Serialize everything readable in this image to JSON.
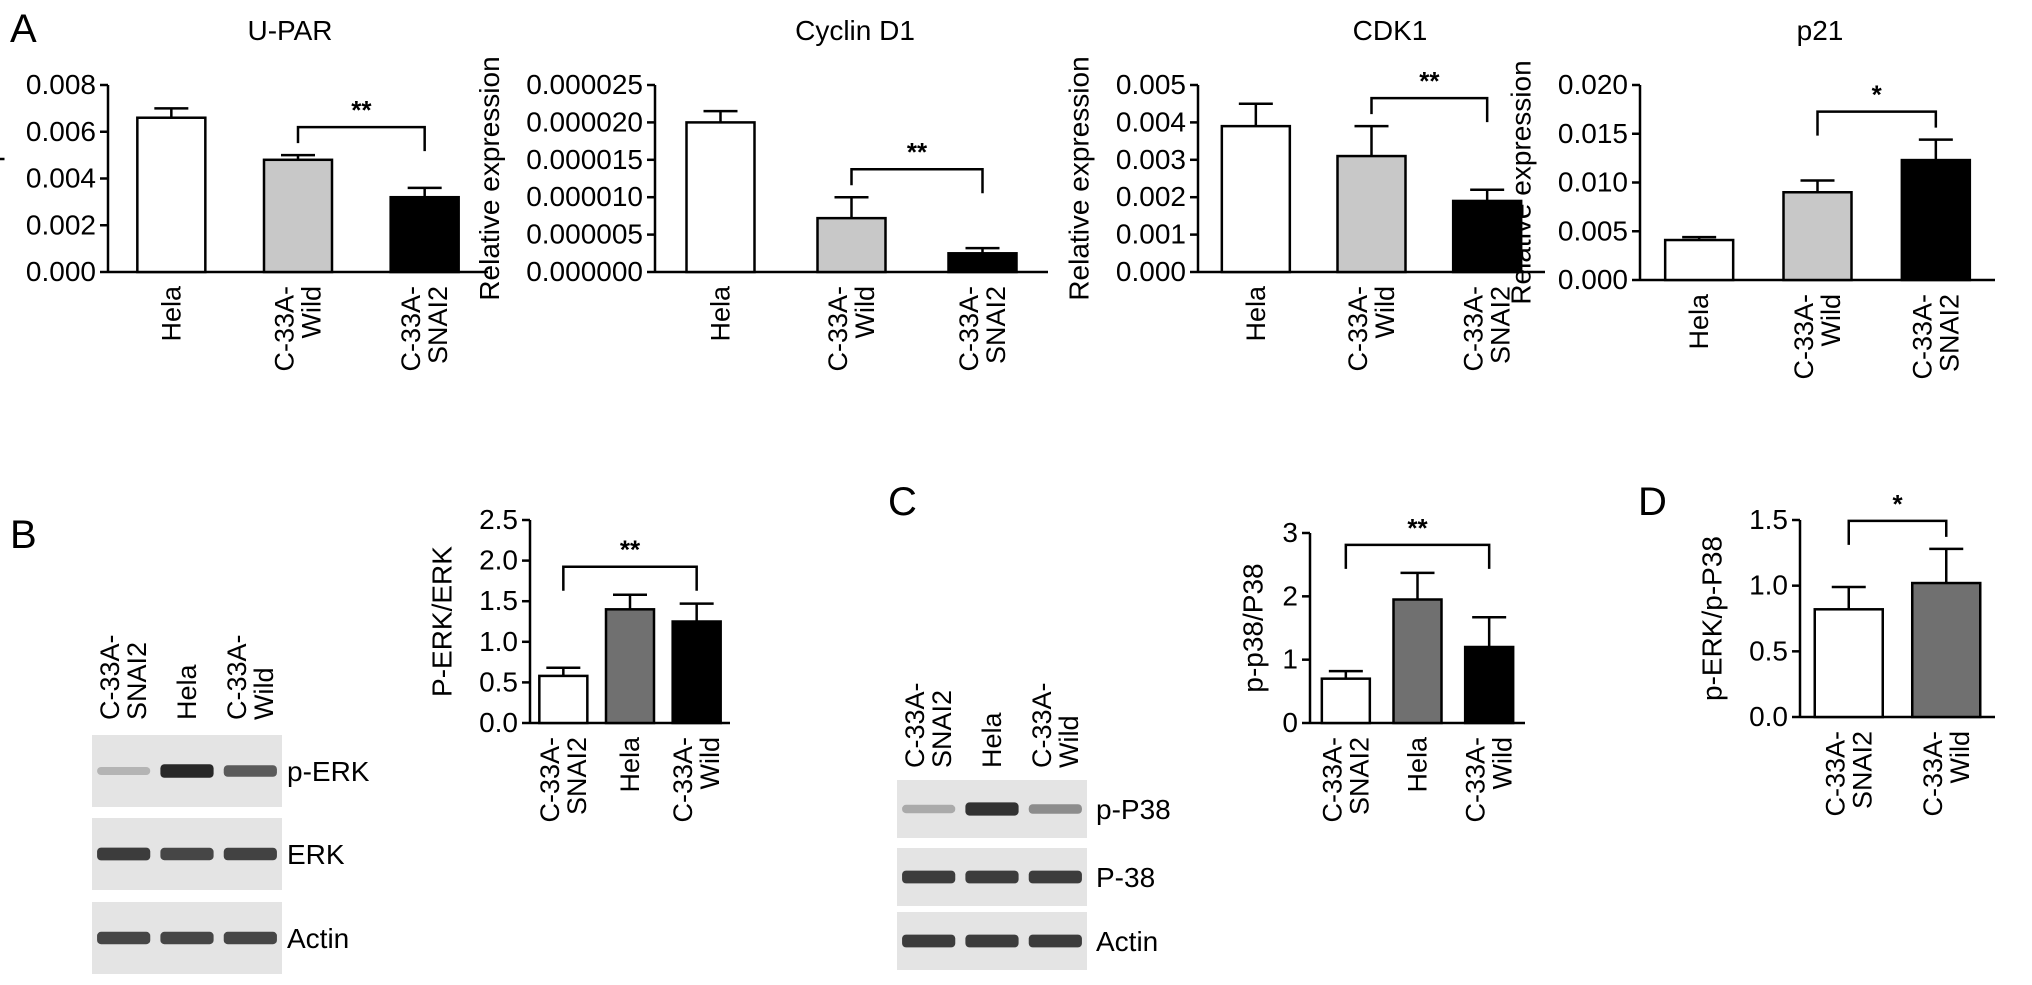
{
  "panel_letters": [
    "A",
    "B",
    "C",
    "D"
  ],
  "blots": {
    "B": {
      "lanes": [
        "C-33A-\nSNAI2",
        "Hela",
        "C-33A-\nWild"
      ],
      "rows": [
        "p-ERK",
        "ERK",
        "Actin"
      ],
      "band_intensity": {
        "p-ERK": [
          0.25,
          0.95,
          0.7
        ],
        "ERK": [
          0.85,
          0.8,
          0.82
        ],
        "Actin": [
          0.8,
          0.8,
          0.8
        ]
      }
    },
    "C": {
      "lanes": [
        "C-33A-\nSNAI2",
        "Hela",
        "C-33A-\nWild"
      ],
      "rows": [
        "p-P38",
        "P-38",
        "Actin"
      ],
      "band_intensity": {
        "p-P38": [
          0.3,
          0.9,
          0.45
        ],
        "P-38": [
          0.85,
          0.85,
          0.85
        ],
        "Actin": [
          0.85,
          0.85,
          0.85
        ]
      }
    }
  },
  "chart_data": [
    {
      "type": "bar",
      "panel": "A",
      "title": "U-PAR",
      "ylabel": "Relative expression",
      "categories": [
        "Hela",
        "C-33A-\nWild",
        "C-33A-\nSNAI2"
      ],
      "values": [
        0.0066,
        0.0048,
        0.0032
      ],
      "errors": [
        0.0004,
        0.0002,
        0.0004
      ],
      "ylim": [
        0,
        0.008
      ],
      "yticks": [
        "0.000",
        "0.002",
        "0.004",
        "0.006",
        "0.008"
      ],
      "ytick_values": [
        0,
        0.002,
        0.004,
        0.006,
        0.008
      ],
      "fills": [
        "#ffffff",
        "#c8c8c8",
        "#000000"
      ],
      "significance": [
        {
          "from": 1,
          "to": 2,
          "label": "**"
        }
      ]
    },
    {
      "type": "bar",
      "panel": "A",
      "title": "Cyclin D1",
      "ylabel": "Relative expression",
      "categories": [
        "Hela",
        "C-33A-\nWild",
        "C-33A-\nSNAI2"
      ],
      "values": [
        2e-05,
        7.2e-06,
        2.5e-06
      ],
      "errors": [
        1.5e-06,
        2.8e-06,
        7e-07
      ],
      "ylim": [
        0,
        2.5e-05
      ],
      "yticks": [
        "0.000000",
        "0.000005",
        "0.000010",
        "0.000015",
        "0.000020",
        "0.000025"
      ],
      "ytick_values": [
        0,
        5e-06,
        1e-05,
        1.5e-05,
        2e-05,
        2.5e-05
      ],
      "fills": [
        "#ffffff",
        "#c8c8c8",
        "#000000"
      ],
      "significance": [
        {
          "from": 1,
          "to": 2,
          "label": "**"
        }
      ]
    },
    {
      "type": "bar",
      "panel": "A",
      "title": "CDK1",
      "ylabel": "Relative expression",
      "categories": [
        "Hela",
        "C-33A-\nWild",
        "C-33A-\nSNAI2"
      ],
      "values": [
        0.0039,
        0.0031,
        0.0019
      ],
      "errors": [
        0.0006,
        0.0008,
        0.0003
      ],
      "ylim": [
        0,
        0.005
      ],
      "yticks": [
        "0.000",
        "0.001",
        "0.002",
        "0.003",
        "0.004",
        "0.005"
      ],
      "ytick_values": [
        0,
        0.001,
        0.002,
        0.003,
        0.004,
        0.005
      ],
      "fills": [
        "#ffffff",
        "#c8c8c8",
        "#000000"
      ],
      "significance": [
        {
          "from": 1,
          "to": 2,
          "label": "**"
        }
      ]
    },
    {
      "type": "bar",
      "panel": "A",
      "title": "p21",
      "ylabel": "Relative expression",
      "categories": [
        "Hela",
        "C-33A-\nWild",
        "C-33A-\nSNAI2"
      ],
      "values": [
        0.0041,
        0.009,
        0.0123
      ],
      "errors": [
        0.0003,
        0.0012,
        0.0021
      ],
      "ylim": [
        0,
        0.02
      ],
      "yticks": [
        "0.000",
        "0.005",
        "0.010",
        "0.015",
        "0.020"
      ],
      "ytick_values": [
        0,
        0.005,
        0.01,
        0.015,
        0.02
      ],
      "fills": [
        "#ffffff",
        "#c8c8c8",
        "#000000"
      ],
      "significance": [
        {
          "from": 1,
          "to": 2,
          "label": "*"
        }
      ]
    },
    {
      "type": "bar",
      "panel": "B",
      "title": "",
      "ylabel": "P-ERK/ERK",
      "categories": [
        "C-33A-\nSNAI2",
        "Hela",
        "C-33A-\nWild"
      ],
      "values": [
        0.58,
        1.4,
        1.25
      ],
      "errors": [
        0.1,
        0.18,
        0.22
      ],
      "ylim": [
        0,
        2.5
      ],
      "yticks": [
        "0.0",
        "0.5",
        "1.0",
        "1.5",
        "2.0",
        "2.5"
      ],
      "ytick_values": [
        0,
        0.5,
        1,
        1.5,
        2,
        2.5
      ],
      "fills": [
        "#ffffff",
        "#707070",
        "#000000"
      ],
      "significance": [
        {
          "from": 0,
          "to": 2,
          "label": "**"
        }
      ]
    },
    {
      "type": "bar",
      "panel": "C",
      "title": "",
      "ylabel": "p-p38/P38",
      "categories": [
        "C-33A-\nSNAI2",
        "Hela",
        "C-33A-\nWild"
      ],
      "values": [
        0.7,
        1.95,
        1.2
      ],
      "errors": [
        0.12,
        0.42,
        0.47
      ],
      "ylim": [
        0,
        3
      ],
      "yticks": [
        "0",
        "1",
        "2",
        "3"
      ],
      "ytick_values": [
        0,
        1,
        2,
        3
      ],
      "fills": [
        "#ffffff",
        "#707070",
        "#000000"
      ],
      "significance": [
        {
          "from": 0,
          "to": 2,
          "label": "**"
        }
      ]
    },
    {
      "type": "bar",
      "panel": "D",
      "title": "",
      "ylabel": "p-ERK/p-P38",
      "categories": [
        "C-33A-\nSNAI2",
        "C-33A-\nWild"
      ],
      "values": [
        0.82,
        1.02
      ],
      "errors": [
        0.17,
        0.26
      ],
      "ylim": [
        0,
        1.5
      ],
      "yticks": [
        "0.0",
        "0.5",
        "1.0",
        "1.5"
      ],
      "ytick_values": [
        0,
        0.5,
        1,
        1.5
      ],
      "fills": [
        "#ffffff",
        "#707070"
      ],
      "significance": [
        {
          "from": 0,
          "to": 1,
          "label": "*"
        }
      ]
    }
  ]
}
